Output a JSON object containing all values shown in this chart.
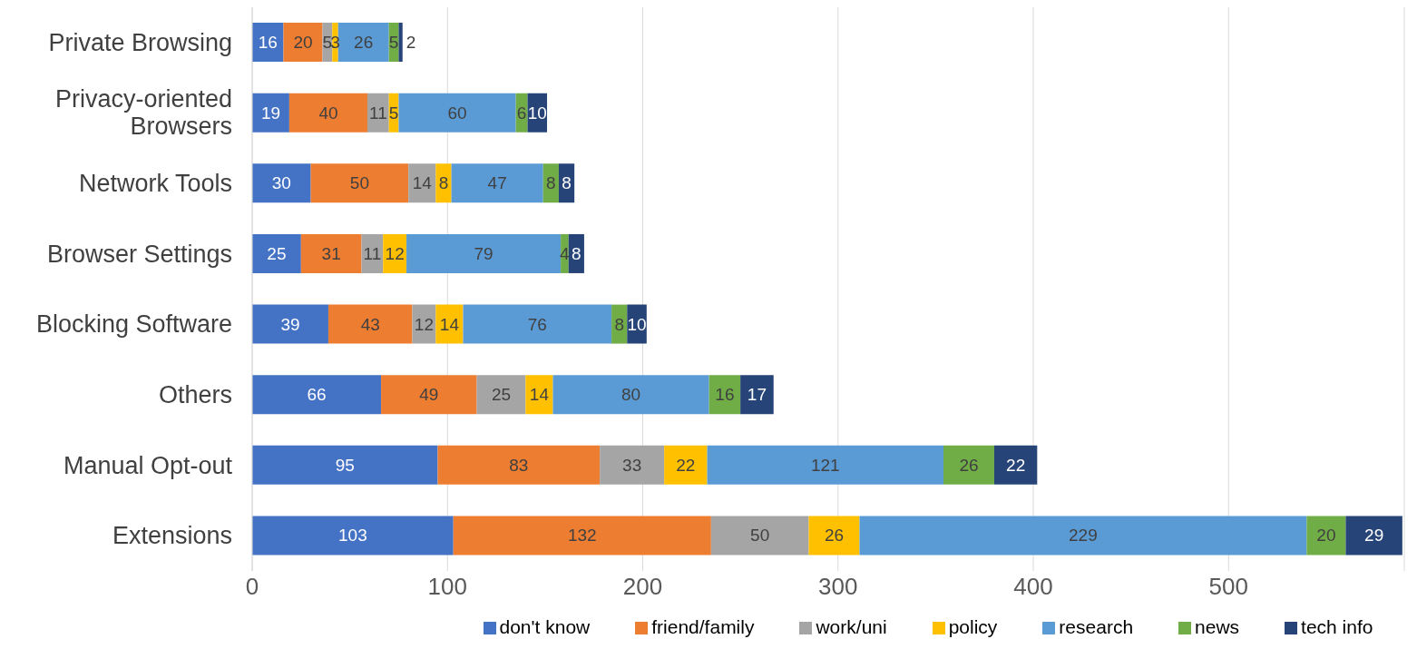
{
  "chart_data": {
    "type": "bar",
    "orientation": "horizontal",
    "stacked": true,
    "data_labels": true,
    "grid": "x",
    "legend": "bottom",
    "categories": [
      "Private Browsing",
      "Privacy-oriented Browsers",
      "Network Tools",
      "Browser Settings",
      "Blocking Software",
      "Others",
      "Manual Opt-out",
      "Extensions"
    ],
    "xlim": [
      0,
      590
    ],
    "xticks": [
      0,
      100,
      200,
      300,
      400,
      500
    ],
    "series": [
      {
        "name": "don't know",
        "color": "#4472c4",
        "values": [
          16,
          19,
          30,
          25,
          39,
          66,
          95,
          103
        ]
      },
      {
        "name": "friend/family",
        "color": "#ed7d31",
        "values": [
          20,
          40,
          50,
          31,
          43,
          49,
          83,
          132
        ]
      },
      {
        "name": "work/uni",
        "color": "#a5a5a5",
        "values": [
          5,
          11,
          14,
          11,
          12,
          25,
          33,
          50
        ]
      },
      {
        "name": "policy",
        "color": "#ffc000",
        "values": [
          3,
          5,
          8,
          12,
          14,
          14,
          22,
          26
        ]
      },
      {
        "name": "research",
        "color": "#5b9bd5",
        "values": [
          26,
          60,
          47,
          79,
          76,
          80,
          121,
          229
        ]
      },
      {
        "name": "news",
        "color": "#70ad47",
        "values": [
          5,
          6,
          8,
          4,
          8,
          16,
          26,
          20
        ]
      },
      {
        "name": "tech info",
        "color": "#264478",
        "values": [
          2,
          10,
          8,
          8,
          10,
          17,
          22,
          29
        ]
      }
    ]
  }
}
